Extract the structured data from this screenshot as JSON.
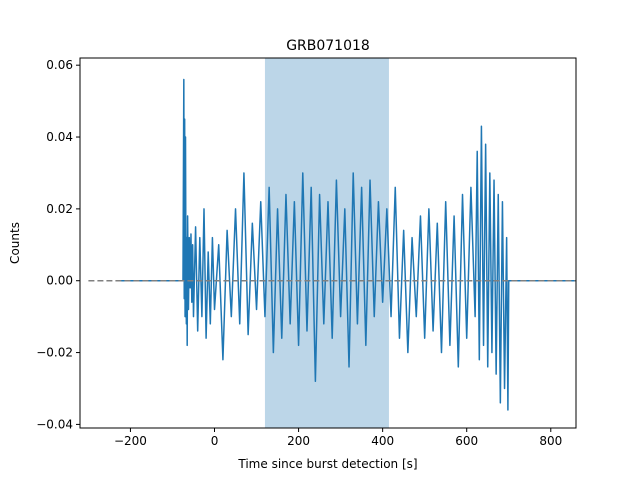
{
  "chart_data": {
    "type": "line",
    "title": "GRB071018",
    "xlabel": "Time since burst detection [s]",
    "ylabel": "Counts",
    "xlim": [
      -320,
      860
    ],
    "ylim": [
      -0.041,
      0.062
    ],
    "xticks": [
      -200,
      0,
      200,
      400,
      600,
      800
    ],
    "xtick_labels": [
      "−200",
      "0",
      "200",
      "400",
      "600",
      "800"
    ],
    "yticks": [
      -0.04,
      -0.02,
      0.0,
      0.02,
      0.04,
      0.06
    ],
    "ytick_labels": [
      "−0.04",
      "−0.02",
      "0.00",
      "0.02",
      "0.04",
      "0.06"
    ],
    "grid": false,
    "legend": "none",
    "shaded_interval": {
      "x_start": 120,
      "x_end": 415,
      "color": "#a6c8e0"
    },
    "reference_line": {
      "y": 0.0,
      "x_start": -300,
      "x_end": 860,
      "style": "dashed",
      "color": "#808080"
    },
    "series": [
      {
        "color": "#1f77b4",
        "x": [
          -235,
          -200,
          -150,
          -100,
          -80,
          -75,
          -73,
          -72,
          -71,
          -70,
          -69,
          -68,
          -67,
          -66,
          -65,
          -64,
          -63,
          -62,
          -60,
          -58,
          -56,
          -54,
          -52,
          -50,
          -45,
          -40,
          -35,
          -30,
          -25,
          -20,
          -15,
          -10,
          -5,
          0,
          10,
          20,
          30,
          40,
          50,
          60,
          70,
          80,
          90,
          100,
          110,
          120,
          130,
          140,
          150,
          160,
          170,
          180,
          190,
          200,
          210,
          220,
          230,
          240,
          250,
          260,
          270,
          280,
          290,
          300,
          310,
          320,
          330,
          340,
          350,
          360,
          370,
          380,
          390,
          400,
          410,
          420,
          430,
          440,
          450,
          460,
          470,
          480,
          490,
          500,
          510,
          520,
          530,
          540,
          550,
          560,
          570,
          580,
          590,
          600,
          610,
          620,
          625,
          630,
          635,
          640,
          645,
          650,
          655,
          660,
          665,
          670,
          675,
          680,
          685,
          690,
          695,
          698,
          700,
          705,
          720,
          760,
          800,
          860
        ],
        "y": [
          0.0,
          0.0,
          0.0,
          0.0,
          0.0,
          0.0,
          0.056,
          -0.005,
          0.045,
          -0.01,
          0.04,
          0.002,
          -0.012,
          0.012,
          -0.018,
          0.018,
          0.005,
          -0.008,
          0.012,
          -0.002,
          0.013,
          -0.006,
          0.01,
          -0.01,
          0.015,
          -0.014,
          0.012,
          -0.01,
          0.02,
          -0.016,
          0.008,
          -0.012,
          0.012,
          -0.008,
          0.01,
          -0.022,
          0.014,
          -0.01,
          0.02,
          -0.012,
          0.03,
          -0.015,
          0.016,
          -0.008,
          0.022,
          -0.01,
          0.026,
          -0.02,
          0.02,
          -0.016,
          0.024,
          -0.012,
          0.022,
          -0.018,
          0.03,
          -0.014,
          0.026,
          -0.028,
          0.024,
          -0.012,
          0.022,
          -0.016,
          0.028,
          -0.01,
          0.02,
          -0.024,
          0.03,
          -0.012,
          0.026,
          -0.018,
          0.028,
          -0.01,
          0.022,
          -0.006,
          0.02,
          -0.01,
          0.026,
          -0.016,
          0.014,
          -0.02,
          0.012,
          -0.01,
          0.018,
          -0.016,
          0.02,
          -0.014,
          0.016,
          -0.02,
          0.022,
          -0.018,
          0.018,
          -0.024,
          0.024,
          -0.016,
          0.026,
          -0.01,
          0.036,
          -0.022,
          0.043,
          -0.018,
          0.038,
          -0.024,
          0.03,
          -0.02,
          0.028,
          -0.026,
          0.024,
          -0.034,
          0.022,
          -0.03,
          0.012,
          -0.036,
          0.0,
          0.0,
          0.0,
          0.0,
          0.0,
          0.0
        ]
      }
    ]
  }
}
